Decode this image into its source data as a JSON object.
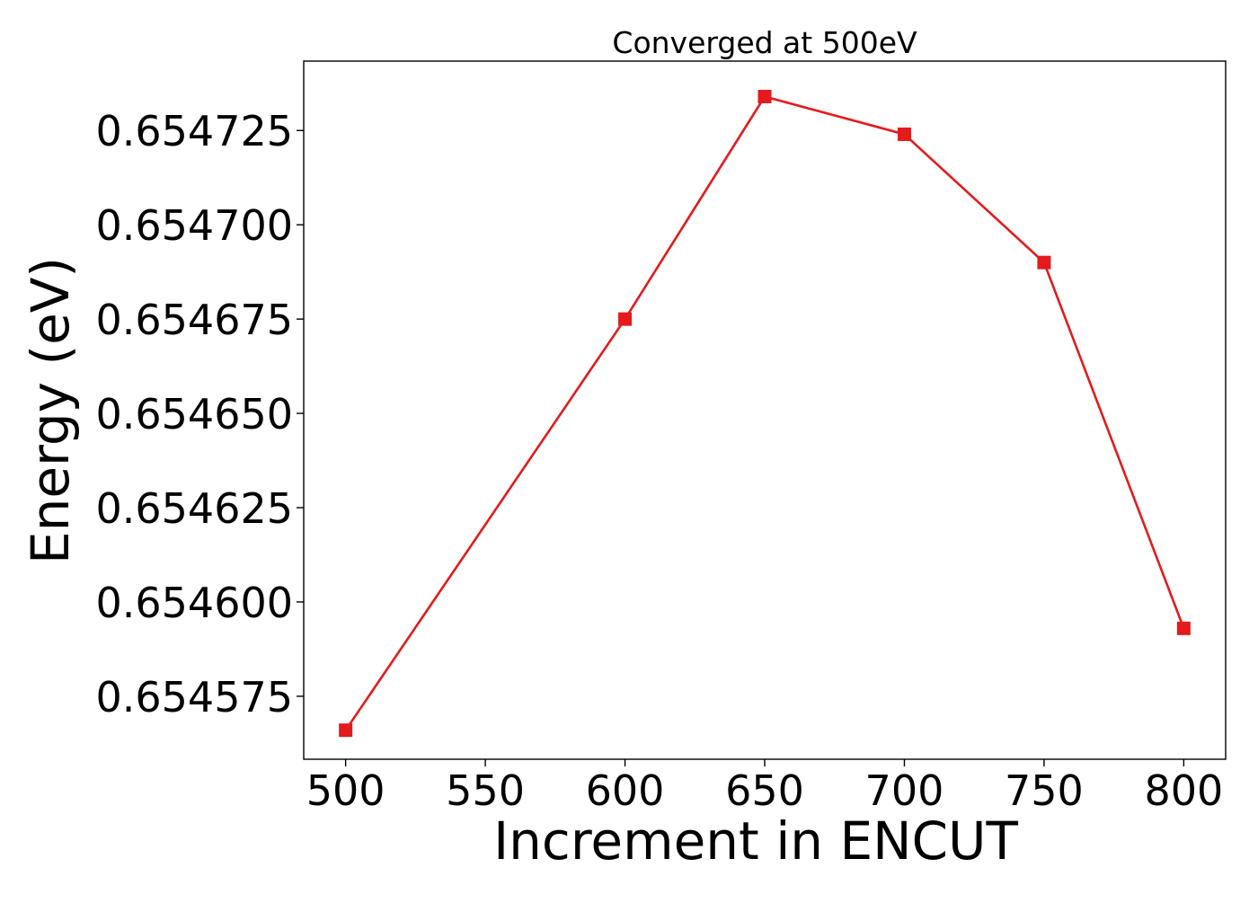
{
  "chart_data": {
    "type": "line",
    "title": "Converged at 500eV",
    "xlabel": "Increment in ENCUT",
    "ylabel": "Energy (eV)",
    "x": [
      500,
      600,
      650,
      700,
      750,
      800
    ],
    "series": [
      {
        "values": [
          0.654566,
          0.654675,
          0.654734,
          0.654724,
          0.65469,
          0.654593
        ],
        "color": "#e41a1c",
        "marker": "square"
      }
    ],
    "xticks": [
      500,
      550,
      600,
      650,
      700,
      750,
      800
    ],
    "xtick_labels": [
      "500",
      "550",
      "600",
      "650",
      "700",
      "750",
      "800"
    ],
    "yticks": [
      0.654575,
      0.6546,
      0.654625,
      0.65465,
      0.654675,
      0.6547,
      0.654725
    ],
    "ytick_labels": [
      "0.654575",
      "0.654600",
      "0.654625",
      "0.654650",
      "0.654675",
      "0.654700",
      "0.654725"
    ],
    "xlim": [
      485,
      815
    ],
    "ylim": [
      0.6545583,
      0.6547434
    ],
    "grid": false,
    "legend": "none"
  }
}
